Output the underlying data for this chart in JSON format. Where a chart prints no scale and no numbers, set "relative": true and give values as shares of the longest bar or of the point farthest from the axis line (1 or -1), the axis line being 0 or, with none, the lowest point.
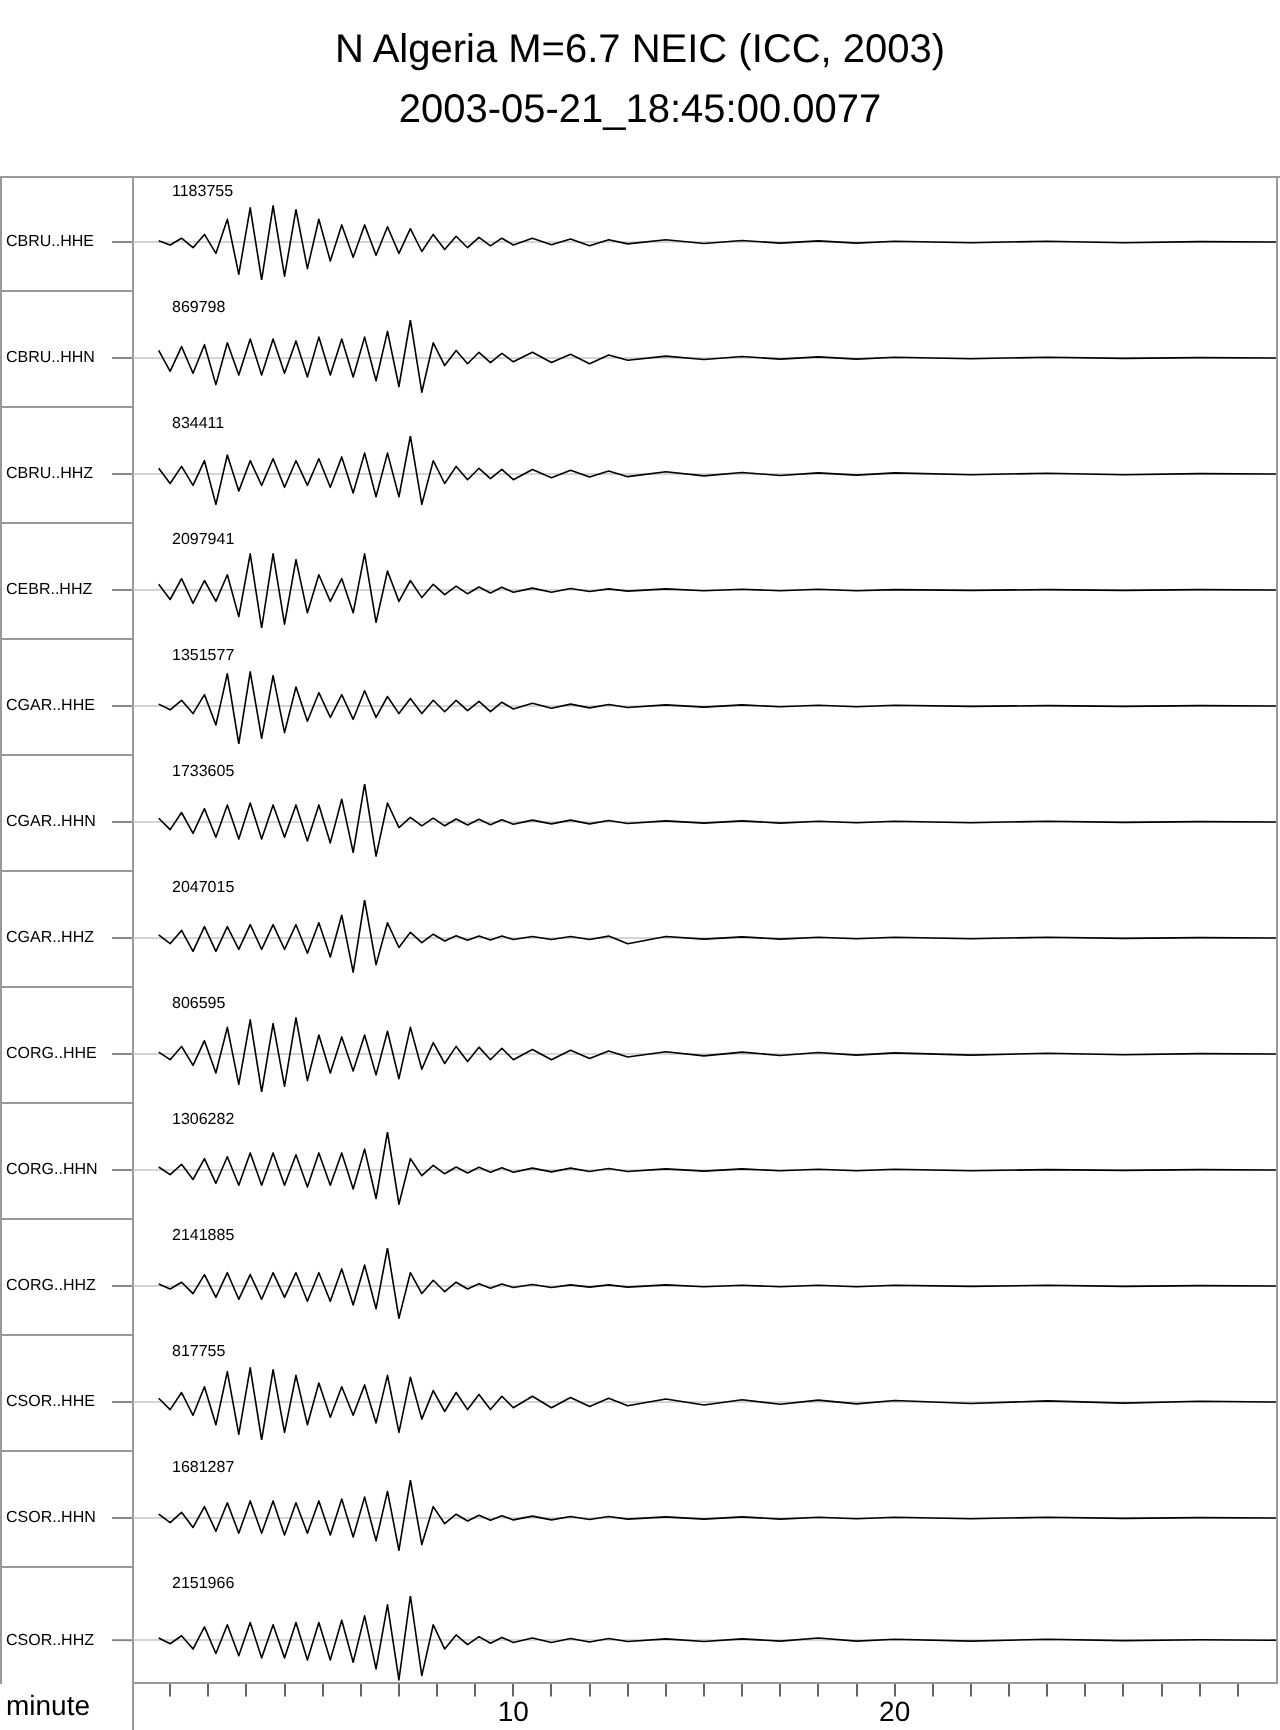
{
  "chart_data": [
    {
      "type": "line",
      "title": "N Algeria M=6.7 NEIC (ICC, 2003)",
      "subtitle": "2003-05-21_18:45:00.0077",
      "ylabel": "CBRU..HHE",
      "annotations": [
        "1183755"
      ],
      "relative": true,
      "xlim": [
        0,
        30
      ],
      "tick_labels": false,
      "x": [
        0.7,
        1.0,
        1.3,
        1.6,
        1.9,
        2.2,
        2.5,
        2.8,
        3.1,
        3.4,
        3.7,
        4.0,
        4.3,
        4.6,
        4.9,
        5.2,
        5.5,
        5.8,
        6.1,
        6.4,
        6.7,
        7.0,
        7.3,
        7.6,
        7.9,
        8.2,
        8.5,
        8.8,
        9.1,
        9.4,
        9.7,
        10,
        10.5,
        11,
        11.5,
        12,
        12.5,
        13,
        14,
        15,
        16,
        17,
        18,
        19,
        20,
        22,
        24,
        26,
        28,
        30
      ],
      "series": [
        {
          "color": "#000000",
          "values": [
            0.03,
            -0.08,
            0.1,
            -0.15,
            0.2,
            -0.3,
            0.6,
            -0.85,
            0.9,
            -1,
            0.95,
            -0.9,
            0.85,
            -0.7,
            0.6,
            -0.5,
            0.45,
            -0.4,
            0.45,
            -0.35,
            0.4,
            -0.3,
            0.35,
            -0.25,
            0.2,
            -0.2,
            0.15,
            -0.15,
            0.12,
            -0.1,
            0.1,
            -0.08,
            0.1,
            -0.07,
            0.08,
            -0.1,
            0.06,
            -0.05,
            0.06,
            -0.04,
            0.04,
            -0.03,
            0.03,
            -0.03,
            0.02,
            -0.02,
            0.02,
            -0.02,
            0.01,
            0
          ]
        }
      ]
    },
    {
      "type": "line",
      "ylabel": "CBRU..HHN",
      "annotations": [
        "869798"
      ],
      "relative": true,
      "xlim": [
        0,
        30
      ],
      "tick_labels": false,
      "x": [
        0.7,
        1.0,
        1.3,
        1.6,
        1.9,
        2.2,
        2.5,
        2.8,
        3.1,
        3.4,
        3.7,
        4.0,
        4.3,
        4.6,
        4.9,
        5.2,
        5.5,
        5.8,
        6.1,
        6.4,
        6.7,
        7.0,
        7.3,
        7.6,
        7.9,
        8.2,
        8.5,
        8.8,
        9.1,
        9.4,
        9.7,
        10,
        10.5,
        11,
        11.5,
        12,
        12.5,
        13,
        14,
        15,
        16,
        17,
        18,
        19,
        20,
        22,
        24,
        26,
        28,
        30
      ],
      "series": [
        {
          "color": "#000000",
          "values": [
            0.2,
            -0.35,
            0.3,
            -0.4,
            0.35,
            -0.7,
            0.4,
            -0.45,
            0.5,
            -0.45,
            0.5,
            -0.4,
            0.45,
            -0.5,
            0.55,
            -0.45,
            0.5,
            -0.5,
            0.55,
            -0.6,
            0.7,
            -0.75,
            1,
            -0.9,
            0.4,
            -0.2,
            0.2,
            -0.15,
            0.15,
            -0.12,
            0.12,
            -0.1,
            0.15,
            -0.12,
            0.1,
            -0.15,
            0.08,
            -0.06,
            0.05,
            -0.04,
            0.04,
            -0.03,
            0.03,
            -0.03,
            0.02,
            -0.02,
            0.02,
            -0.01,
            0.01,
            0
          ]
        }
      ]
    },
    {
      "type": "line",
      "ylabel": "CBRU..HHZ",
      "annotations": [
        "834411"
      ],
      "relative": true,
      "xlim": [
        0,
        30
      ],
      "tick_labels": false,
      "x": [
        0.7,
        1.0,
        1.3,
        1.6,
        1.9,
        2.2,
        2.5,
        2.8,
        3.1,
        3.4,
        3.7,
        4.0,
        4.3,
        4.6,
        4.9,
        5.2,
        5.5,
        5.8,
        6.1,
        6.4,
        6.7,
        7.0,
        7.3,
        7.6,
        7.9,
        8.2,
        8.5,
        8.8,
        9.1,
        9.4,
        9.7,
        10,
        10.5,
        11,
        11.5,
        12,
        12.5,
        13,
        14,
        15,
        16,
        17,
        18,
        19,
        20,
        22,
        24,
        26,
        28,
        30
      ],
      "series": [
        {
          "color": "#000000",
          "values": [
            0.15,
            -0.25,
            0.2,
            -0.3,
            0.35,
            -0.8,
            0.5,
            -0.45,
            0.35,
            -0.3,
            0.4,
            -0.35,
            0.35,
            -0.3,
            0.4,
            -0.35,
            0.45,
            -0.5,
            0.55,
            -0.6,
            0.55,
            -0.6,
            1,
            -0.8,
            0.35,
            -0.25,
            0.2,
            -0.15,
            0.15,
            -0.12,
            0.12,
            -0.15,
            0.12,
            -0.1,
            0.1,
            -0.08,
            0.08,
            -0.07,
            0.06,
            -0.05,
            0.04,
            -0.04,
            0.03,
            -0.03,
            0.03,
            -0.02,
            0.02,
            -0.02,
            0.01,
            0
          ]
        }
      ]
    },
    {
      "type": "line",
      "ylabel": "CEBR..HHZ",
      "annotations": [
        "2097941"
      ],
      "relative": true,
      "xlim": [
        0,
        30
      ],
      "tick_labels": false,
      "x": [
        0.7,
        1.0,
        1.3,
        1.6,
        1.9,
        2.2,
        2.5,
        2.8,
        3.1,
        3.4,
        3.7,
        4.0,
        4.3,
        4.6,
        4.9,
        5.2,
        5.5,
        5.8,
        6.1,
        6.4,
        6.7,
        7.0,
        7.3,
        7.6,
        7.9,
        8.2,
        8.5,
        8.8,
        9.1,
        9.4,
        9.7,
        10,
        10.5,
        11,
        11.5,
        12,
        12.5,
        13,
        14,
        15,
        16,
        17,
        18,
        19,
        20,
        22,
        24,
        26,
        28,
        30
      ],
      "series": [
        {
          "color": "#000000",
          "values": [
            0.15,
            -0.25,
            0.3,
            -0.35,
            0.25,
            -0.3,
            0.4,
            -0.7,
            0.95,
            -1,
            0.95,
            -0.9,
            0.8,
            -0.6,
            0.4,
            -0.3,
            0.3,
            -0.6,
            0.95,
            -0.85,
            0.5,
            -0.3,
            0.25,
            -0.2,
            0.15,
            -0.12,
            0.1,
            -0.1,
            0.08,
            -0.08,
            0.07,
            -0.06,
            0.05,
            -0.06,
            0.04,
            -0.04,
            0.03,
            -0.03,
            0.03,
            -0.02,
            0.02,
            -0.02,
            0.02,
            -0.02,
            0.01,
            -0.01,
            0.01,
            -0.01,
            0.01,
            0
          ]
        }
      ]
    },
    {
      "type": "line",
      "ylabel": "CGAR..HHE",
      "annotations": [
        "1351577"
      ],
      "relative": true,
      "xlim": [
        0,
        30
      ],
      "tick_labels": false,
      "x": [
        0.7,
        1.0,
        1.3,
        1.6,
        1.9,
        2.2,
        2.5,
        2.8,
        3.1,
        3.4,
        3.7,
        4.0,
        4.3,
        4.6,
        4.9,
        5.2,
        5.5,
        5.8,
        6.1,
        6.4,
        6.7,
        7.0,
        7.3,
        7.6,
        7.9,
        8.2,
        8.5,
        8.8,
        9.1,
        9.4,
        9.7,
        10,
        10.5,
        11,
        11.5,
        12,
        12.5,
        13,
        14,
        15,
        16,
        17,
        18,
        19,
        20,
        22,
        24,
        26,
        28,
        30
      ],
      "series": [
        {
          "color": "#000000",
          "values": [
            0.05,
            -0.1,
            0.15,
            -0.2,
            0.3,
            -0.5,
            0.85,
            -1,
            0.9,
            -0.85,
            0.8,
            -0.7,
            0.5,
            -0.4,
            0.35,
            -0.3,
            0.3,
            -0.35,
            0.4,
            -0.3,
            0.25,
            -0.2,
            0.2,
            -0.2,
            0.15,
            -0.15,
            0.15,
            -0.12,
            0.12,
            -0.15,
            0.1,
            -0.08,
            0.07,
            -0.06,
            0.05,
            -0.05,
            0.04,
            -0.04,
            0.03,
            -0.03,
            0.03,
            -0.02,
            0.02,
            -0.02,
            0.02,
            -0.01,
            0.01,
            -0.01,
            0.01,
            0
          ]
        }
      ]
    },
    {
      "type": "line",
      "ylabel": "CGAR..HHN",
      "annotations": [
        "1733605"
      ],
      "relative": true,
      "xlim": [
        0,
        30
      ],
      "tick_labels": false,
      "x": [
        0.7,
        1.0,
        1.3,
        1.6,
        1.9,
        2.2,
        2.5,
        2.8,
        3.1,
        3.4,
        3.7,
        4.0,
        4.3,
        4.6,
        4.9,
        5.2,
        5.5,
        5.8,
        6.1,
        6.4,
        6.7,
        7.0,
        7.3,
        7.6,
        7.9,
        8.2,
        8.5,
        8.8,
        9.1,
        9.4,
        9.7,
        10,
        10.5,
        11,
        11.5,
        12,
        12.5,
        13,
        14,
        15,
        16,
        17,
        18,
        19,
        20,
        22,
        24,
        26,
        28,
        30
      ],
      "series": [
        {
          "color": "#000000",
          "values": [
            0.1,
            -0.2,
            0.25,
            -0.3,
            0.35,
            -0.4,
            0.45,
            -0.45,
            0.5,
            -0.45,
            0.45,
            -0.4,
            0.45,
            -0.5,
            0.45,
            -0.55,
            0.6,
            -0.8,
            1,
            -0.9,
            0.5,
            -0.15,
            0.12,
            -0.1,
            0.1,
            -0.1,
            0.08,
            -0.08,
            0.07,
            -0.07,
            0.06,
            -0.06,
            0.05,
            -0.05,
            0.05,
            -0.05,
            0.04,
            -0.04,
            0.03,
            -0.03,
            0.03,
            -0.03,
            0.02,
            -0.02,
            0.02,
            -0.02,
            0.02,
            -0.01,
            0.01,
            0
          ]
        }
      ]
    },
    {
      "type": "line",
      "ylabel": "CGAR..HHZ",
      "annotations": [
        "2047015"
      ],
      "relative": true,
      "xlim": [
        0,
        30
      ],
      "tick_labels": false,
      "x": [
        0.7,
        1.0,
        1.3,
        1.6,
        1.9,
        2.2,
        2.5,
        2.8,
        3.1,
        3.4,
        3.7,
        4.0,
        4.3,
        4.6,
        4.9,
        5.2,
        5.5,
        5.8,
        6.1,
        6.4,
        6.7,
        7.0,
        7.3,
        7.6,
        7.9,
        8.2,
        8.5,
        8.8,
        9.1,
        9.4,
        9.7,
        10,
        10.5,
        11,
        11.5,
        12,
        12.5,
        13,
        14,
        15,
        16,
        17,
        18,
        19,
        20,
        22,
        24,
        26,
        28,
        30
      ],
      "series": [
        {
          "color": "#000000",
          "values": [
            0.08,
            -0.15,
            0.2,
            -0.35,
            0.3,
            -0.35,
            0.3,
            -0.3,
            0.35,
            -0.3,
            0.35,
            -0.3,
            0.35,
            -0.4,
            0.4,
            -0.5,
            0.6,
            -0.9,
            1,
            -0.7,
            0.4,
            -0.25,
            0.15,
            -0.12,
            0.1,
            -0.08,
            0.06,
            -0.06,
            0.05,
            -0.05,
            0.05,
            -0.04,
            0.04,
            -0.04,
            0.04,
            -0.04,
            0.05,
            -0.15,
            0.04,
            -0.03,
            0.03,
            -0.03,
            0.02,
            -0.02,
            0.02,
            -0.02,
            0.02,
            -0.01,
            0.01,
            0
          ]
        }
      ]
    },
    {
      "type": "line",
      "ylabel": "CORG..HHE",
      "annotations": [
        "806595"
      ],
      "relative": true,
      "xlim": [
        0,
        30
      ],
      "tick_labels": false,
      "x": [
        0.7,
        1.0,
        1.3,
        1.6,
        1.9,
        2.2,
        2.5,
        2.8,
        3.1,
        3.4,
        3.7,
        4.0,
        4.3,
        4.6,
        4.9,
        5.2,
        5.5,
        5.8,
        6.1,
        6.4,
        6.7,
        7.0,
        7.3,
        7.6,
        7.9,
        8.2,
        8.5,
        8.8,
        9.1,
        9.4,
        9.7,
        10,
        10.5,
        11,
        11.5,
        12,
        12.5,
        13,
        14,
        15,
        16,
        17,
        18,
        19,
        20,
        22,
        24,
        26,
        28,
        30
      ],
      "series": [
        {
          "color": "#000000",
          "values": [
            0.05,
            -0.15,
            0.2,
            -0.3,
            0.35,
            -0.5,
            0.7,
            -0.8,
            0.9,
            -1,
            0.8,
            -0.85,
            0.95,
            -0.7,
            0.5,
            -0.5,
            0.45,
            -0.45,
            0.5,
            -0.55,
            0.6,
            -0.65,
            0.7,
            -0.4,
            0.3,
            -0.25,
            0.2,
            -0.2,
            0.18,
            -0.15,
            0.15,
            -0.15,
            0.12,
            -0.15,
            0.1,
            -0.12,
            0.08,
            -0.08,
            0.06,
            -0.05,
            0.05,
            -0.04,
            0.04,
            -0.03,
            0.03,
            -0.03,
            0.02,
            -0.02,
            0.01,
            0
          ]
        }
      ]
    },
    {
      "type": "line",
      "ylabel": "CORG..HHN",
      "annotations": [
        "1306282"
      ],
      "relative": true,
      "xlim": [
        0,
        30
      ],
      "tick_labels": false,
      "x": [
        0.7,
        1.0,
        1.3,
        1.6,
        1.9,
        2.2,
        2.5,
        2.8,
        3.1,
        3.4,
        3.7,
        4.0,
        4.3,
        4.6,
        4.9,
        5.2,
        5.5,
        5.8,
        6.1,
        6.4,
        6.7,
        7.0,
        7.3,
        7.6,
        7.9,
        8.2,
        8.5,
        8.8,
        9.1,
        9.4,
        9.7,
        10,
        10.5,
        11,
        11.5,
        12,
        12.5,
        13,
        14,
        15,
        16,
        17,
        18,
        19,
        20,
        22,
        24,
        26,
        28,
        30
      ],
      "series": [
        {
          "color": "#000000",
          "values": [
            0.08,
            -0.12,
            0.15,
            -0.25,
            0.3,
            -0.35,
            0.35,
            -0.4,
            0.45,
            -0.4,
            0.45,
            -0.4,
            0.4,
            -0.45,
            0.45,
            -0.4,
            0.45,
            -0.5,
            0.55,
            -0.75,
            1,
            -0.9,
            0.3,
            -0.15,
            0.12,
            -0.1,
            0.08,
            -0.08,
            0.07,
            -0.06,
            0.06,
            -0.06,
            0.05,
            -0.05,
            0.05,
            -0.04,
            0.04,
            -0.04,
            0.03,
            -0.03,
            0.03,
            -0.02,
            0.02,
            -0.02,
            0.02,
            -0.02,
            0.01,
            -0.01,
            0.01,
            0
          ]
        }
      ]
    },
    {
      "type": "line",
      "ylabel": "CORG..HHZ",
      "annotations": [
        "2141885"
      ],
      "relative": true,
      "xlim": [
        0,
        30
      ],
      "tick_labels": false,
      "x": [
        0.7,
        1.0,
        1.3,
        1.6,
        1.9,
        2.2,
        2.5,
        2.8,
        3.1,
        3.4,
        3.7,
        4.0,
        4.3,
        4.6,
        4.9,
        5.2,
        5.5,
        5.8,
        6.1,
        6.4,
        6.7,
        7.0,
        7.3,
        7.6,
        7.9,
        8.2,
        8.5,
        8.8,
        9.1,
        9.4,
        9.7,
        10,
        10.5,
        11,
        11.5,
        12,
        12.5,
        13,
        14,
        15,
        16,
        17,
        18,
        19,
        20,
        22,
        24,
        26,
        28,
        30
      ],
      "series": [
        {
          "color": "#000000",
          "values": [
            0.05,
            -0.08,
            0.1,
            -0.2,
            0.3,
            -0.3,
            0.35,
            -0.35,
            0.3,
            -0.35,
            0.35,
            -0.3,
            0.35,
            -0.4,
            0.35,
            -0.4,
            0.45,
            -0.5,
            0.55,
            -0.6,
            1,
            -0.85,
            0.35,
            -0.2,
            0.15,
            -0.15,
            0.1,
            -0.08,
            0.06,
            -0.06,
            0.05,
            -0.04,
            0.04,
            -0.04,
            0.03,
            -0.03,
            0.03,
            -0.03,
            0.03,
            -0.02,
            0.02,
            -0.02,
            0.02,
            -0.02,
            0.02,
            -0.01,
            0.02,
            -0.01,
            0.01,
            0
          ]
        }
      ]
    },
    {
      "type": "line",
      "ylabel": "CSOR..HHE",
      "annotations": [
        "817755"
      ],
      "relative": true,
      "xlim": [
        0,
        30
      ],
      "tick_labels": false,
      "x": [
        0.7,
        1.0,
        1.3,
        1.6,
        1.9,
        2.2,
        2.5,
        2.8,
        3.1,
        3.4,
        3.7,
        4.0,
        4.3,
        4.6,
        4.9,
        5.2,
        5.5,
        5.8,
        6.1,
        6.4,
        6.7,
        7.0,
        7.3,
        7.6,
        7.9,
        8.2,
        8.5,
        8.8,
        9.1,
        9.4,
        9.7,
        10,
        10.5,
        11,
        11.5,
        12,
        12.5,
        13,
        14,
        15,
        16,
        17,
        18,
        19,
        20,
        22,
        24,
        26,
        28,
        30
      ],
      "series": [
        {
          "color": "#000000",
          "values": [
            0.1,
            -0.2,
            0.25,
            -0.35,
            0.4,
            -0.6,
            0.8,
            -0.85,
            0.9,
            -1,
            0.85,
            -0.8,
            0.7,
            -0.6,
            0.5,
            -0.4,
            0.4,
            -0.35,
            0.45,
            -0.55,
            0.7,
            -0.8,
            0.65,
            -0.45,
            0.3,
            -0.25,
            0.25,
            -0.2,
            0.2,
            -0.2,
            0.15,
            -0.15,
            0.15,
            -0.15,
            0.12,
            -0.12,
            0.1,
            -0.1,
            0.08,
            -0.08,
            0.06,
            -0.06,
            0.05,
            -0.05,
            0.04,
            -0.04,
            0.03,
            -0.03,
            0.02,
            0
          ]
        }
      ]
    },
    {
      "type": "line",
      "ylabel": "CSOR..HHN",
      "annotations": [
        "1681287"
      ],
      "relative": true,
      "xlim": [
        0,
        30
      ],
      "tick_labels": false,
      "x": [
        0.7,
        1.0,
        1.3,
        1.6,
        1.9,
        2.2,
        2.5,
        2.8,
        3.1,
        3.4,
        3.7,
        4.0,
        4.3,
        4.6,
        4.9,
        5.2,
        5.5,
        5.8,
        6.1,
        6.4,
        6.7,
        7.0,
        7.3,
        7.6,
        7.9,
        8.2,
        8.5,
        8.8,
        9.1,
        9.4,
        9.7,
        10,
        10.5,
        11,
        11.5,
        12,
        12.5,
        13,
        14,
        15,
        16,
        17,
        18,
        19,
        20,
        22,
        24,
        26,
        28,
        30
      ],
      "series": [
        {
          "color": "#000000",
          "values": [
            0.1,
            -0.12,
            0.15,
            -0.25,
            0.3,
            -0.35,
            0.4,
            -0.4,
            0.45,
            -0.4,
            0.45,
            -0.45,
            0.4,
            -0.4,
            0.45,
            -0.45,
            0.5,
            -0.5,
            0.55,
            -0.6,
            0.7,
            -0.85,
            1,
            -0.7,
            0.3,
            -0.15,
            0.1,
            -0.08,
            0.07,
            -0.06,
            0.06,
            -0.05,
            0.05,
            -0.05,
            0.04,
            -0.04,
            0.04,
            -0.03,
            0.03,
            -0.03,
            0.03,
            -0.03,
            0.02,
            -0.02,
            0.02,
            -0.02,
            0.02,
            -0.01,
            0.01,
            0
          ]
        }
      ]
    },
    {
      "type": "line",
      "ylabel": "CSOR..HHZ",
      "annotations": [
        "2151966"
      ],
      "relative": true,
      "xlim": [
        0,
        30
      ],
      "tick_labels": "x",
      "xlabel": "minute",
      "xticks": [
        {
          "value": 1,
          "label": null
        },
        {
          "value": 2,
          "label": null
        },
        {
          "value": 3,
          "label": null
        },
        {
          "value": 4,
          "label": null
        },
        {
          "value": 5,
          "label": null
        },
        {
          "value": 6,
          "label": null
        },
        {
          "value": 7,
          "label": null
        },
        {
          "value": 8,
          "label": null
        },
        {
          "value": 9,
          "label": null
        },
        10,
        {
          "value": 11,
          "label": null
        },
        {
          "value": 12,
          "label": null
        },
        {
          "value": 13,
          "label": null
        },
        {
          "value": 14,
          "label": null
        },
        {
          "value": 15,
          "label": null
        },
        {
          "value": 16,
          "label": null
        },
        {
          "value": 17,
          "label": null
        },
        {
          "value": 18,
          "label": null
        },
        {
          "value": 19,
          "label": null
        },
        20,
        {
          "value": 21,
          "label": null
        },
        {
          "value": 22,
          "label": null
        },
        {
          "value": 23,
          "label": null
        },
        {
          "value": 24,
          "label": null
        },
        {
          "value": 25,
          "label": null
        },
        {
          "value": 26,
          "label": null
        },
        {
          "value": 27,
          "label": null
        },
        {
          "value": 28,
          "label": null
        },
        {
          "value": 29,
          "label": null
        }
      ],
      "x": [
        0.7,
        1.0,
        1.3,
        1.6,
        1.9,
        2.2,
        2.5,
        2.8,
        3.1,
        3.4,
        3.7,
        4.0,
        4.3,
        4.6,
        4.9,
        5.2,
        5.5,
        5.8,
        6.1,
        6.4,
        6.7,
        7.0,
        7.3,
        7.6,
        7.9,
        8.2,
        8.5,
        8.8,
        9.1,
        9.4,
        9.7,
        10,
        10.5,
        11,
        11.5,
        12,
        12.5,
        13,
        14,
        15,
        16,
        17,
        18,
        19,
        20,
        22,
        24,
        26,
        28,
        30
      ],
      "series": [
        {
          "color": "#000000",
          "values": [
            0.05,
            -0.08,
            0.1,
            -0.2,
            0.3,
            -0.3,
            0.35,
            -0.35,
            0.4,
            -0.4,
            0.35,
            -0.4,
            0.4,
            -0.45,
            0.4,
            -0.45,
            0.45,
            -0.5,
            0.55,
            -0.65,
            0.8,
            -0.9,
            1,
            -0.8,
            0.35,
            -0.2,
            0.12,
            -0.1,
            0.08,
            -0.07,
            0.06,
            -0.05,
            0.05,
            -0.05,
            0.04,
            -0.04,
            0.04,
            -0.03,
            0.03,
            -0.03,
            0.03,
            -0.02,
            0.05,
            -0.02,
            0.02,
            -0.02,
            0.02,
            -0.01,
            0.01,
            0
          ]
        }
      ]
    }
  ]
}
